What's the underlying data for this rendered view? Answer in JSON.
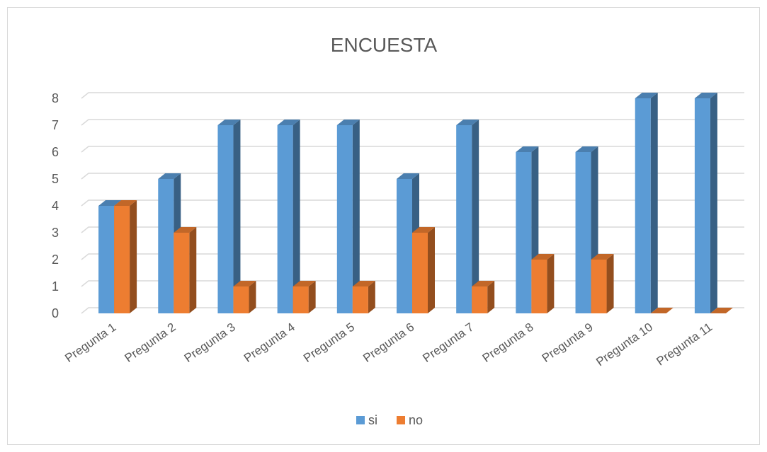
{
  "chart_data": {
    "type": "bar",
    "title": "ENCUESTA",
    "categories": [
      "Pregunta 1",
      "Pregunta 2",
      "Pregunta 3",
      "Pregunta 4",
      "Pregunta 5",
      "Pregunta 6",
      "Pregunta 7",
      "Pregunta 8",
      "Pregunta 9",
      "Pregunta 10",
      "Pregunta 11"
    ],
    "series": [
      {
        "name": "si",
        "values": [
          4,
          5,
          7,
          7,
          7,
          5,
          7,
          6,
          6,
          8,
          8
        ],
        "color": "#5b9bd5"
      },
      {
        "name": "no",
        "values": [
          4,
          3,
          1,
          1,
          1,
          3,
          1,
          2,
          2,
          0,
          0
        ],
        "color": "#ed7d31"
      }
    ],
    "ylim": [
      0,
      8
    ],
    "yticks": [
      "0",
      "1",
      "2",
      "3",
      "4",
      "5",
      "6",
      "7",
      "8"
    ],
    "grid": true,
    "legend_position": "bottom",
    "style": "3d-clustered-column"
  }
}
